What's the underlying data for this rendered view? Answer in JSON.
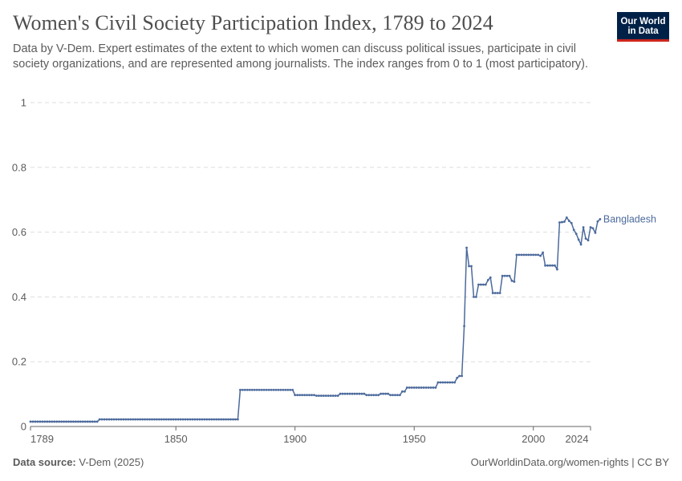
{
  "header": {
    "title": "Women's Civil Society Participation Index, 1789 to 2024",
    "subtitle": "Data by V-Dem. Expert estimates of the extent to which women can discuss political issues, participate in civil society organizations, and are represented among journalists. The index ranges from 0 to 1 (most participatory)."
  },
  "logo": {
    "line1": "Our World",
    "line2": "in Data"
  },
  "footer": {
    "source_label": "Data source:",
    "source_value": "V-Dem (2025)",
    "right_text": "OurWorldinData.org/women-rights | CC BY"
  },
  "colors": {
    "series": "#4c6a9c",
    "grid": "#dddddd",
    "axis": "#666666",
    "text": "#5b5b5b"
  },
  "chart_data": {
    "type": "line",
    "title": "Women's Civil Society Participation Index, 1789 to 2024",
    "xlim": [
      1789,
      2024
    ],
    "ylim": [
      0,
      1
    ],
    "x_ticks": [
      {
        "value": 1789,
        "label": "1789"
      },
      {
        "value": 1850,
        "label": "1850"
      },
      {
        "value": 1900,
        "label": "1900"
      },
      {
        "value": 1950,
        "label": "1950"
      },
      {
        "value": 2000,
        "label": "2000"
      },
      {
        "value": 2024,
        "label": "2024"
      }
    ],
    "y_ticks": [
      {
        "value": 0,
        "label": "0"
      },
      {
        "value": 0.2,
        "label": "0.2"
      },
      {
        "value": 0.4,
        "label": "0.4"
      },
      {
        "value": 0.6,
        "label": "0.6"
      },
      {
        "value": 0.8,
        "label": "0.8"
      },
      {
        "value": 1,
        "label": "1"
      }
    ],
    "grid": true,
    "legend": "end-of-line label",
    "series": [
      {
        "name": "Bangladesh",
        "points": [
          [
            1789,
            0.015
          ],
          [
            1817,
            0.015
          ],
          [
            1818,
            0.022
          ],
          [
            1876,
            0.022
          ],
          [
            1877,
            0.113
          ],
          [
            1899,
            0.113
          ],
          [
            1900,
            0.097
          ],
          [
            1908,
            0.097
          ],
          [
            1909,
            0.095
          ],
          [
            1918,
            0.095
          ],
          [
            1919,
            0.101
          ],
          [
            1929,
            0.101
          ],
          [
            1930,
            0.097
          ],
          [
            1935,
            0.097
          ],
          [
            1936,
            0.101
          ],
          [
            1939,
            0.101
          ],
          [
            1940,
            0.097
          ],
          [
            1944,
            0.097
          ],
          [
            1945,
            0.108
          ],
          [
            1946,
            0.108
          ],
          [
            1947,
            0.12
          ],
          [
            1959,
            0.12
          ],
          [
            1960,
            0.136
          ],
          [
            1967,
            0.136
          ],
          [
            1968,
            0.15
          ],
          [
            1969,
            0.156
          ],
          [
            1970,
            0.156
          ],
          [
            1971,
            0.31
          ],
          [
            1972,
            0.552
          ],
          [
            1973,
            0.495
          ],
          [
            1974,
            0.495
          ],
          [
            1975,
            0.4
          ],
          [
            1976,
            0.4
          ],
          [
            1977,
            0.438
          ],
          [
            1980,
            0.438
          ],
          [
            1981,
            0.452
          ],
          [
            1982,
            0.46
          ],
          [
            1983,
            0.412
          ],
          [
            1986,
            0.412
          ],
          [
            1987,
            0.465
          ],
          [
            1990,
            0.465
          ],
          [
            1991,
            0.45
          ],
          [
            1992,
            0.447
          ],
          [
            1993,
            0.53
          ],
          [
            2002,
            0.53
          ],
          [
            2003,
            0.527
          ],
          [
            2004,
            0.537
          ],
          [
            2005,
            0.497
          ],
          [
            2009,
            0.497
          ],
          [
            2010,
            0.485
          ],
          [
            2011,
            0.63
          ],
          [
            2013,
            0.632
          ],
          [
            2014,
            0.645
          ],
          [
            2015,
            0.635
          ],
          [
            2016,
            0.628
          ],
          [
            2017,
            0.607
          ],
          [
            2018,
            0.595
          ],
          [
            2019,
            0.577
          ],
          [
            2020,
            0.562
          ],
          [
            2021,
            0.615
          ],
          [
            2022,
            0.58
          ],
          [
            2023,
            0.575
          ],
          [
            2024,
            0.615
          ],
          [
            2025,
            0.612
          ],
          [
            2026,
            0.598
          ],
          [
            2027,
            0.633
          ],
          [
            2028,
            0.64
          ]
        ]
      }
    ]
  }
}
